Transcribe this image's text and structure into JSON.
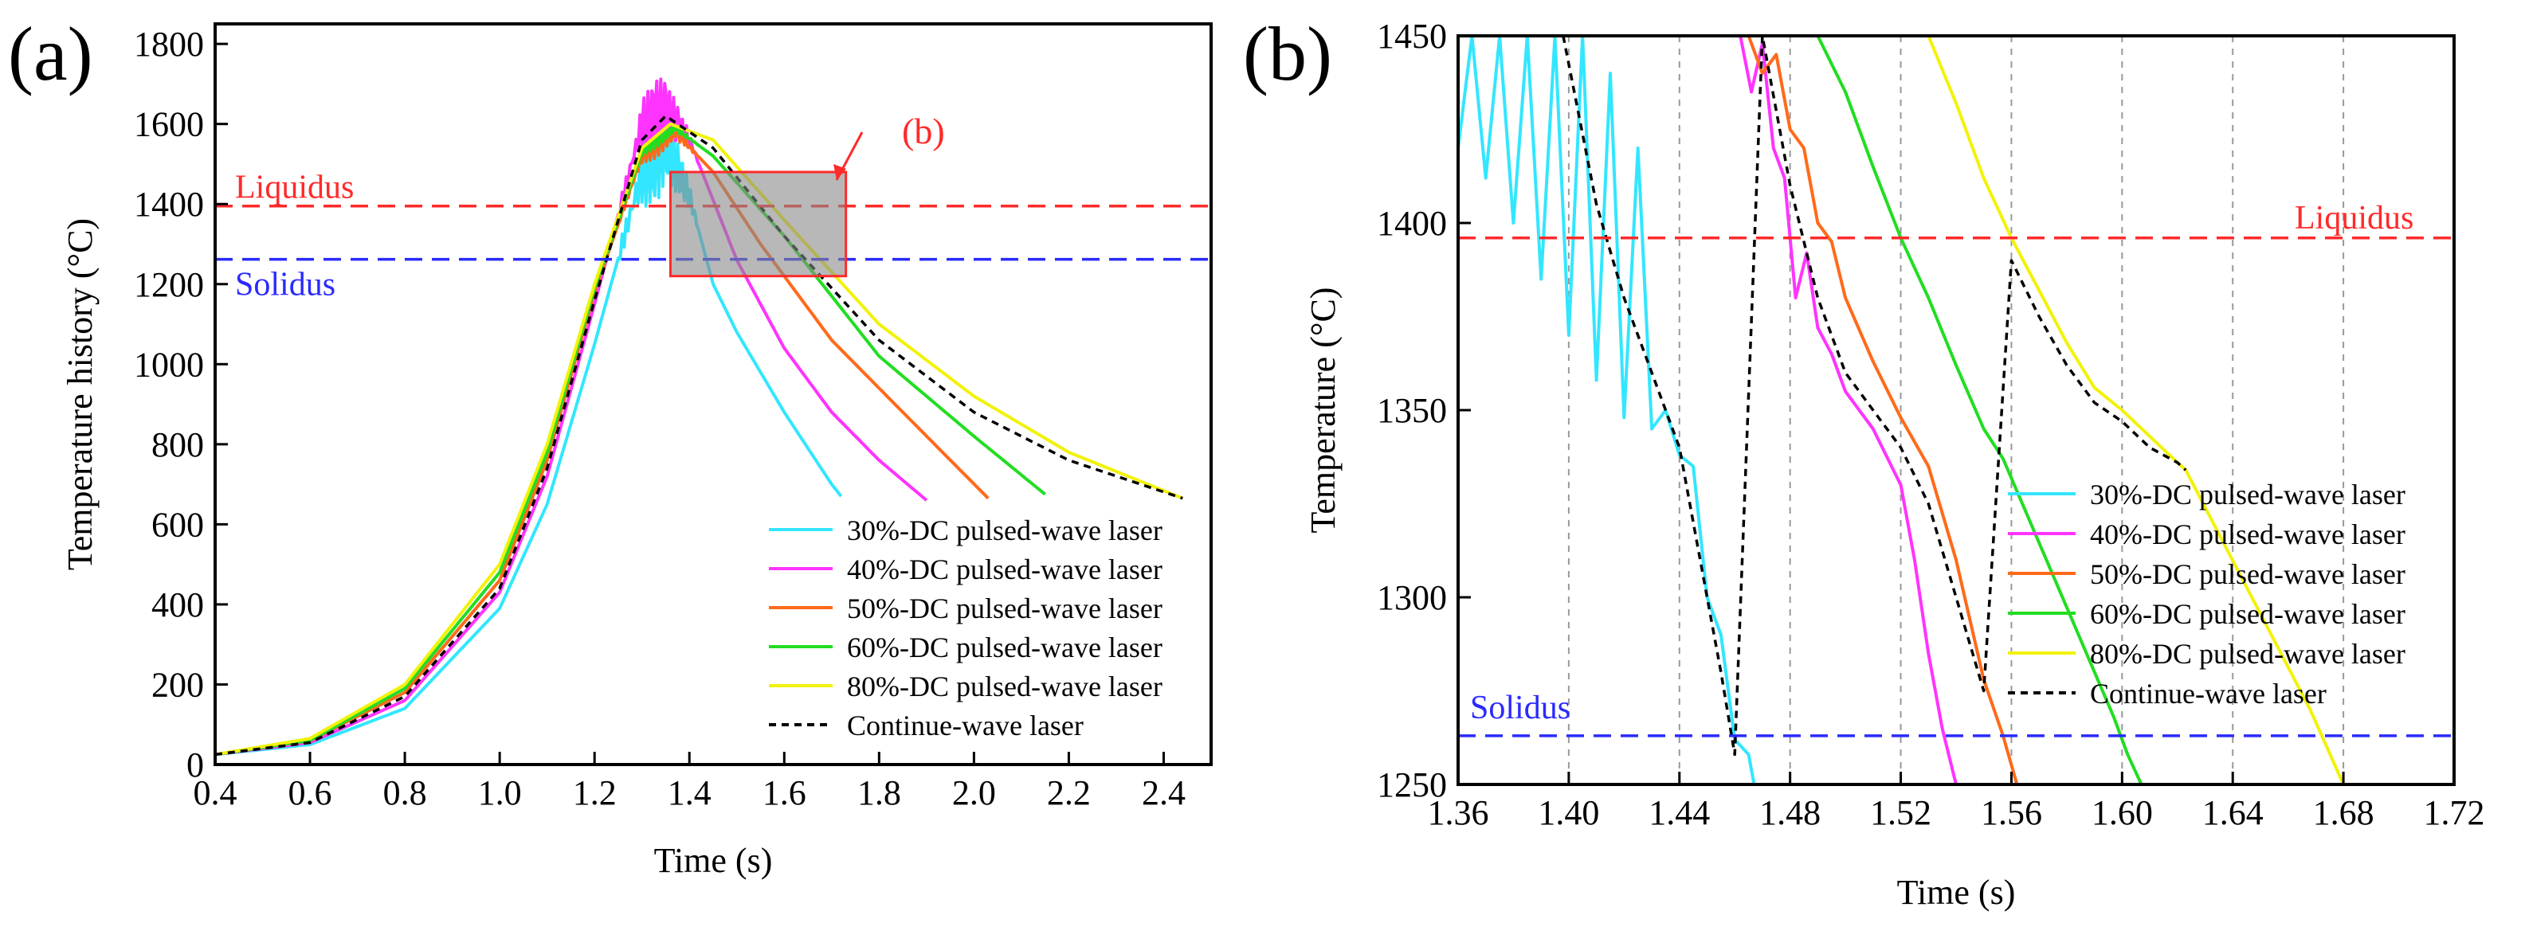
{
  "chart_data": [
    {
      "panel": "(a)",
      "type": "line",
      "title": "",
      "xlabel": "Time (s)",
      "ylabel": "Temperature history (°C)",
      "xlim": [
        0.4,
        2.5
      ],
      "ylim": [
        0,
        1850
      ],
      "xticks": [
        0.4,
        0.6,
        0.8,
        1.0,
        1.2,
        1.4,
        1.6,
        1.8,
        2.0,
        2.2,
        2.4
      ],
      "xtick_labels": [
        "0.4",
        "0.6",
        "0.8",
        "1.0",
        "1.2",
        "1.4",
        "1.6",
        "1.8",
        "2.0",
        "2.2",
        "2.4"
      ],
      "yticks": [
        0,
        200,
        400,
        600,
        800,
        1000,
        1200,
        1400,
        1600,
        1800
      ],
      "ytick_labels": [
        "0",
        "200",
        "400",
        "600",
        "800",
        "1000",
        "1200",
        "1400",
        "1600",
        "1800"
      ],
      "reference_lines": [
        {
          "name": "Liquidus",
          "y": 1395,
          "color": "#ff2a2a"
        },
        {
          "name": "Solidus",
          "y": 1262,
          "color": "#2a2aff"
        }
      ],
      "zoom_box": {
        "label": "(b)",
        "x": [
          1.36,
          1.73
        ],
        "y": [
          1220,
          1480
        ]
      },
      "legend": [
        {
          "name": "30%-DC pulsed-wave laser",
          "color": "#33e6ff",
          "dash": false
        },
        {
          "name": "40%-DC pulsed-wave laser",
          "color": "#ff33ff",
          "dash": false
        },
        {
          "name": "50%-DC pulsed-wave laser",
          "color": "#ff6a1a",
          "dash": false
        },
        {
          "name": "60%-DC pulsed-wave laser",
          "color": "#22dd22",
          "dash": false
        },
        {
          "name": "80%-DC pulsed-wave laser",
          "color": "#f2f20a",
          "dash": false
        },
        {
          "name": "Continue-wave laser",
          "color": "#000000",
          "dash": true
        }
      ],
      "legend_position": "bottom-right",
      "series": [
        {
          "name": "30%-DC",
          "color": "#33e6ff",
          "ripple": 130,
          "x": [
            0.4,
            0.6,
            0.8,
            1.0,
            1.1,
            1.2,
            1.3,
            1.35,
            1.4,
            1.45,
            1.5,
            1.6,
            1.7,
            1.72
          ],
          "y": [
            25,
            50,
            140,
            390,
            650,
            1050,
            1480,
            1560,
            1420,
            1200,
            1080,
            880,
            700,
            670
          ]
        },
        {
          "name": "40%-DC",
          "color": "#ff33ff",
          "ripple": 90,
          "x": [
            0.4,
            0.6,
            0.8,
            1.0,
            1.1,
            1.2,
            1.3,
            1.35,
            1.4,
            1.5,
            1.6,
            1.7,
            1.8,
            1.9
          ],
          "y": [
            25,
            55,
            160,
            430,
            720,
            1150,
            1600,
            1640,
            1560,
            1260,
            1040,
            880,
            760,
            660
          ]
        },
        {
          "name": "50%-DC",
          "color": "#ff6a1a",
          "ripple": 30,
          "x": [
            0.4,
            0.6,
            0.8,
            1.0,
            1.1,
            1.2,
            1.3,
            1.37,
            1.45,
            1.55,
            1.7,
            1.85,
            2.03
          ],
          "y": [
            25,
            60,
            180,
            460,
            760,
            1180,
            1520,
            1580,
            1480,
            1300,
            1060,
            880,
            665
          ]
        },
        {
          "name": "60%-DC",
          "color": "#22dd22",
          "ripple": 15,
          "x": [
            0.4,
            0.6,
            0.8,
            1.0,
            1.1,
            1.2,
            1.3,
            1.37,
            1.45,
            1.6,
            1.8,
            2.0,
            2.15
          ],
          "y": [
            25,
            60,
            190,
            480,
            780,
            1190,
            1530,
            1590,
            1520,
            1320,
            1020,
            820,
            675
          ]
        },
        {
          "name": "80%-DC",
          "color": "#f2f20a",
          "ripple": 0,
          "x": [
            0.4,
            0.6,
            0.8,
            1.0,
            1.1,
            1.2,
            1.3,
            1.36,
            1.45,
            1.6,
            1.8,
            2.0,
            2.2,
            2.44
          ],
          "y": [
            25,
            65,
            200,
            500,
            800,
            1200,
            1540,
            1600,
            1560,
            1360,
            1100,
            920,
            780,
            665
          ]
        },
        {
          "name": "Continue-wave laser",
          "color": "#000000",
          "dash": true,
          "x": [
            0.4,
            0.6,
            0.8,
            1.0,
            1.1,
            1.2,
            1.3,
            1.35,
            1.45,
            1.6,
            1.8,
            2.0,
            2.2,
            2.44
          ],
          "y": [
            25,
            55,
            170,
            440,
            740,
            1160,
            1560,
            1620,
            1540,
            1320,
            1060,
            880,
            760,
            665
          ]
        }
      ]
    },
    {
      "panel": "(b)",
      "type": "line",
      "title": "",
      "xlabel": "Time (s)",
      "ylabel": "Temperature (°C)",
      "xlim": [
        1.36,
        1.72
      ],
      "ylim": [
        1250,
        1450
      ],
      "xticks": [
        1.36,
        1.4,
        1.44,
        1.48,
        1.52,
        1.56,
        1.6,
        1.64,
        1.68,
        1.72
      ],
      "xtick_labels": [
        "1.36",
        "1.40",
        "1.44",
        "1.48",
        "1.52",
        "1.56",
        "1.60",
        "1.64",
        "1.68",
        "1.72"
      ],
      "yticks": [
        1250,
        1300,
        1350,
        1400,
        1450
      ],
      "ytick_labels": [
        "1250",
        "1300",
        "1350",
        "1400",
        "1450"
      ],
      "vertical_gridlines": [
        1.4,
        1.44,
        1.48,
        1.52,
        1.56,
        1.6,
        1.64,
        1.68
      ],
      "reference_lines": [
        {
          "name": "Liquidus",
          "y": 1396,
          "color": "#ff2a2a"
        },
        {
          "name": "Solidus",
          "y": 1263,
          "color": "#2a2aff"
        }
      ],
      "legend": [
        {
          "name": "30%-DC pulsed-wave laser",
          "color": "#33e6ff",
          "dash": false
        },
        {
          "name": "40%-DC pulsed-wave laser",
          "color": "#ff33ff",
          "dash": false
        },
        {
          "name": "50%-DC pulsed-wave laser",
          "color": "#ff6a1a",
          "dash": false
        },
        {
          "name": "60%-DC pulsed-wave laser",
          "color": "#22dd22",
          "dash": false
        },
        {
          "name": "80%-DC pulsed-wave laser",
          "color": "#f2f20a",
          "dash": false
        },
        {
          "name": "Continue-wave laser",
          "color": "#000000",
          "dash": true
        }
      ],
      "legend_position": "bottom-right",
      "series": [
        {
          "name": "30%-DC",
          "color": "#33e6ff",
          "x": [
            1.36,
            1.365,
            1.37,
            1.375,
            1.38,
            1.385,
            1.39,
            1.395,
            1.4,
            1.405,
            1.41,
            1.415,
            1.42,
            1.425,
            1.43,
            1.435,
            1.44,
            1.445,
            1.45,
            1.455,
            1.46,
            1.465,
            1.467
          ],
          "y": [
            1420,
            1450,
            1412,
            1450,
            1400,
            1450,
            1385,
            1450,
            1370,
            1450,
            1358,
            1440,
            1348,
            1420,
            1345,
            1350,
            1338,
            1335,
            1300,
            1290,
            1262,
            1258,
            1250
          ]
        },
        {
          "name": "40%-DC",
          "color": "#ff33ff",
          "x": [
            1.462,
            1.466,
            1.47,
            1.474,
            1.478,
            1.482,
            1.486,
            1.49,
            1.495,
            1.5,
            1.51,
            1.52,
            1.525,
            1.53,
            1.535,
            1.54
          ],
          "y": [
            1450,
            1435,
            1448,
            1420,
            1412,
            1380,
            1392,
            1372,
            1365,
            1355,
            1345,
            1330,
            1310,
            1285,
            1265,
            1250
          ]
        },
        {
          "name": "50%-DC",
          "color": "#ff6a1a",
          "x": [
            1.465,
            1.47,
            1.475,
            1.48,
            1.485,
            1.49,
            1.495,
            1.5,
            1.51,
            1.52,
            1.53,
            1.54,
            1.55,
            1.557,
            1.562
          ],
          "y": [
            1450,
            1440,
            1445,
            1425,
            1420,
            1400,
            1395,
            1380,
            1363,
            1348,
            1335,
            1310,
            1278,
            1263,
            1250
          ]
        },
        {
          "name": "60%-DC",
          "color": "#22dd22",
          "x": [
            1.49,
            1.5,
            1.51,
            1.52,
            1.53,
            1.54,
            1.55,
            1.557,
            1.597,
            1.602,
            1.607
          ],
          "y": [
            1450,
            1435,
            1415,
            1396,
            1380,
            1362,
            1345,
            1337,
            1268,
            1258,
            1250
          ]
        },
        {
          "name": "80%-DC",
          "color": "#f2f20a",
          "x": [
            1.53,
            1.54,
            1.55,
            1.56,
            1.57,
            1.58,
            1.59,
            1.6,
            1.61,
            1.62,
            1.623,
            1.668,
            1.674,
            1.68
          ],
          "y": [
            1450,
            1432,
            1412,
            1396,
            1382,
            1368,
            1356,
            1350,
            1343,
            1336,
            1334,
            1270,
            1260,
            1250
          ]
        },
        {
          "name": "Continue-wave laser",
          "color": "#000000",
          "dash": true,
          "x": [
            1.398,
            1.41,
            1.42,
            1.43,
            1.44,
            1.45,
            1.455,
            1.46,
            1.47,
            1.48,
            1.49,
            1.5,
            1.51,
            1.52,
            1.53,
            1.54,
            1.55,
            1.56,
            1.57,
            1.58,
            1.59,
            1.6,
            1.61,
            1.62,
            1.623
          ],
          "y": [
            1450,
            1405,
            1380,
            1360,
            1340,
            1300,
            1280,
            1258,
            1450,
            1410,
            1380,
            1360,
            1350,
            1340,
            1325,
            1300,
            1275,
            1390,
            1375,
            1362,
            1352,
            1347,
            1340,
            1336,
            1334
          ]
        }
      ]
    }
  ]
}
